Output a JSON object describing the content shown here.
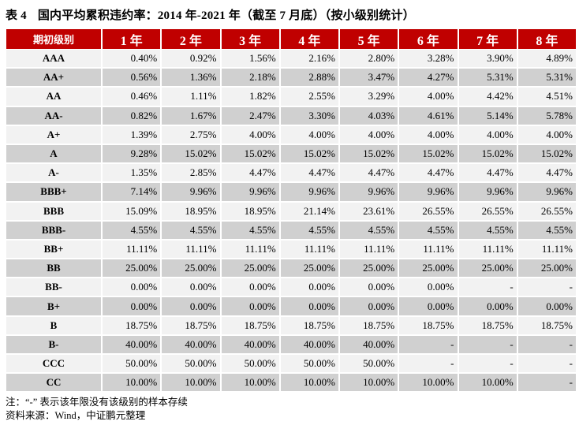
{
  "title": {
    "number": "表 4",
    "text": "国内平均累积违约率：2014 年-2021 年（截至 7 月底）（按小级别统计）"
  },
  "table": {
    "headers": [
      "期初级别",
      "1 年",
      "2 年",
      "3 年",
      "4 年",
      "5 年",
      "6 年",
      "7 年",
      "8 年"
    ],
    "rows": [
      {
        "grade": "AAA",
        "values": [
          "0.40%",
          "0.92%",
          "1.56%",
          "2.16%",
          "2.80%",
          "3.28%",
          "3.90%",
          "4.89%"
        ]
      },
      {
        "grade": "AA+",
        "values": [
          "0.56%",
          "1.36%",
          "2.18%",
          "2.88%",
          "3.47%",
          "4.27%",
          "5.31%",
          "5.31%"
        ]
      },
      {
        "grade": "AA",
        "values": [
          "0.46%",
          "1.11%",
          "1.82%",
          "2.55%",
          "3.29%",
          "4.00%",
          "4.42%",
          "4.51%"
        ]
      },
      {
        "grade": "AA-",
        "values": [
          "0.82%",
          "1.67%",
          "2.47%",
          "3.30%",
          "4.03%",
          "4.61%",
          "5.14%",
          "5.78%"
        ]
      },
      {
        "grade": "A+",
        "values": [
          "1.39%",
          "2.75%",
          "4.00%",
          "4.00%",
          "4.00%",
          "4.00%",
          "4.00%",
          "4.00%"
        ]
      },
      {
        "grade": "A",
        "values": [
          "9.28%",
          "15.02%",
          "15.02%",
          "15.02%",
          "15.02%",
          "15.02%",
          "15.02%",
          "15.02%"
        ]
      },
      {
        "grade": "A-",
        "values": [
          "1.35%",
          "2.85%",
          "4.47%",
          "4.47%",
          "4.47%",
          "4.47%",
          "4.47%",
          "4.47%"
        ]
      },
      {
        "grade": "BBB+",
        "values": [
          "7.14%",
          "9.96%",
          "9.96%",
          "9.96%",
          "9.96%",
          "9.96%",
          "9.96%",
          "9.96%"
        ]
      },
      {
        "grade": "BBB",
        "values": [
          "15.09%",
          "18.95%",
          "18.95%",
          "21.14%",
          "23.61%",
          "26.55%",
          "26.55%",
          "26.55%"
        ]
      },
      {
        "grade": "BBB-",
        "values": [
          "4.55%",
          "4.55%",
          "4.55%",
          "4.55%",
          "4.55%",
          "4.55%",
          "4.55%",
          "4.55%"
        ]
      },
      {
        "grade": "BB+",
        "values": [
          "11.11%",
          "11.11%",
          "11.11%",
          "11.11%",
          "11.11%",
          "11.11%",
          "11.11%",
          "11.11%"
        ]
      },
      {
        "grade": "BB",
        "values": [
          "25.00%",
          "25.00%",
          "25.00%",
          "25.00%",
          "25.00%",
          "25.00%",
          "25.00%",
          "25.00%"
        ]
      },
      {
        "grade": "BB-",
        "values": [
          "0.00%",
          "0.00%",
          "0.00%",
          "0.00%",
          "0.00%",
          "0.00%",
          "-",
          "-"
        ]
      },
      {
        "grade": "B+",
        "values": [
          "0.00%",
          "0.00%",
          "0.00%",
          "0.00%",
          "0.00%",
          "0.00%",
          "0.00%",
          "0.00%"
        ]
      },
      {
        "grade": "B",
        "values": [
          "18.75%",
          "18.75%",
          "18.75%",
          "18.75%",
          "18.75%",
          "18.75%",
          "18.75%",
          "18.75%"
        ]
      },
      {
        "grade": "B-",
        "values": [
          "40.00%",
          "40.00%",
          "40.00%",
          "40.00%",
          "40.00%",
          "-",
          "-",
          "-"
        ]
      },
      {
        "grade": "CCC",
        "values": [
          "50.00%",
          "50.00%",
          "50.00%",
          "50.00%",
          "50.00%",
          "-",
          "-",
          "-"
        ]
      },
      {
        "grade": "CC",
        "values": [
          "10.00%",
          "10.00%",
          "10.00%",
          "10.00%",
          "10.00%",
          "10.00%",
          "10.00%",
          "-"
        ]
      }
    ]
  },
  "notes": {
    "note": "注：“-” 表示该年限没有该级别的样本存续",
    "source": "资料来源：Wind，中证鹏元整理"
  },
  "colors": {
    "header_bg": "#c00000",
    "row_light": "#f2f2f2",
    "row_dark": "#d0d0d0"
  }
}
